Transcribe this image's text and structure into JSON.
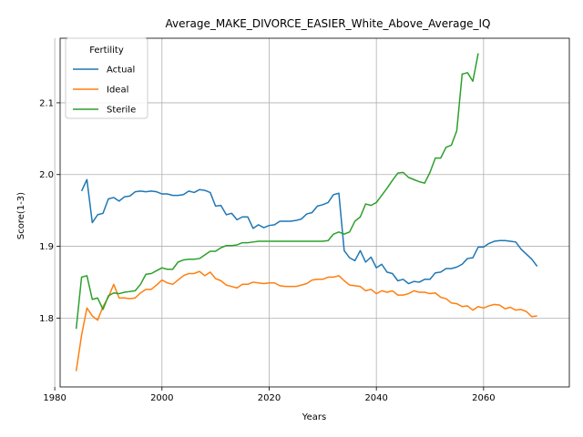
{
  "chart_data": {
    "type": "line",
    "title": "Average_MAKE_DIVORCE_EASIER_White_Above_Average_IQ",
    "xlabel": "Years",
    "ylabel": "Score(1-3)",
    "xlim": [
      1981,
      2076
    ],
    "ylim": [
      1.704,
      2.19
    ],
    "xticks": [
      1980,
      2000,
      2020,
      2040,
      2060
    ],
    "yticks": [
      1.8,
      1.9,
      2.0,
      2.1
    ],
    "ytick_labels": [
      "1.8",
      "1.9",
      "2.0",
      "2.1"
    ],
    "grid": true,
    "legend": {
      "title": "Fertility",
      "placement": "upper-left"
    },
    "series": [
      {
        "name": "Actual",
        "color": "#1f77b4",
        "x": [
          1985,
          1986,
          1987,
          1988,
          1989,
          1990,
          1991,
          1992,
          1993,
          1994,
          1995,
          1996,
          1997,
          1998,
          1999,
          2000,
          2001,
          2002,
          2003,
          2004,
          2005,
          2006,
          2007,
          2008,
          2009,
          2010,
          2011,
          2012,
          2013,
          2014,
          2015,
          2016,
          2017,
          2018,
          2019,
          2020,
          2021,
          2022,
          2023,
          2024,
          2025,
          2026,
          2027,
          2028,
          2029,
          2030,
          2031,
          2032,
          2033,
          2034,
          2035,
          2036,
          2037,
          2038,
          2039,
          2040,
          2041,
          2042,
          2043,
          2044,
          2045,
          2046,
          2047,
          2048,
          2049,
          2050,
          2051,
          2052,
          2053,
          2054,
          2055,
          2056,
          2057,
          2058,
          2059,
          2060,
          2061,
          2062,
          2063,
          2064,
          2065,
          2066,
          2067,
          2068,
          2069,
          2070
        ],
        "y": [
          1.977,
          1.993,
          1.933,
          1.944,
          1.946,
          1.966,
          1.968,
          1.963,
          1.969,
          1.97,
          1.976,
          1.977,
          1.976,
          1.977,
          1.976,
          1.973,
          1.973,
          1.971,
          1.971,
          1.972,
          1.977,
          1.975,
          1.979,
          1.978,
          1.975,
          1.956,
          1.957,
          1.944,
          1.946,
          1.937,
          1.941,
          1.941,
          1.925,
          1.93,
          1.926,
          1.929,
          1.93,
          1.935,
          1.935,
          1.935,
          1.936,
          1.938,
          1.945,
          1.947,
          1.956,
          1.958,
          1.961,
          1.972,
          1.974,
          1.894,
          1.884,
          1.88,
          1.894,
          1.878,
          1.885,
          1.87,
          1.875,
          1.864,
          1.862,
          1.852,
          1.854,
          1.848,
          1.851,
          1.85,
          1.854,
          1.854,
          1.863,
          1.864,
          1.869,
          1.869,
          1.871,
          1.875,
          1.883,
          1.884,
          1.899,
          1.899,
          1.904,
          1.907,
          1.908,
          1.908,
          1.907,
          1.906,
          1.896,
          1.889,
          1.882,
          1.872
        ]
      },
      {
        "name": "Ideal",
        "color": "#ff7f0e",
        "x": [
          1984,
          1985,
          1986,
          1987,
          1988,
          1989,
          1990,
          1991,
          1992,
          1993,
          1994,
          1995,
          1996,
          1997,
          1998,
          1999,
          2000,
          2001,
          2002,
          2003,
          2004,
          2005,
          2006,
          2007,
          2008,
          2009,
          2010,
          2011,
          2012,
          2013,
          2014,
          2015,
          2016,
          2017,
          2018,
          2019,
          2020,
          2021,
          2022,
          2023,
          2024,
          2025,
          2026,
          2027,
          2028,
          2029,
          2030,
          2031,
          2032,
          2033,
          2034,
          2035,
          2036,
          2037,
          2038,
          2039,
          2040,
          2041,
          2042,
          2043,
          2044,
          2045,
          2046,
          2047,
          2048,
          2049,
          2050,
          2051,
          2052,
          2053,
          2054,
          2055,
          2056,
          2057,
          2058,
          2059,
          2060,
          2061,
          2062,
          2063,
          2064,
          2065,
          2066,
          2067,
          2068,
          2069,
          2070
        ],
        "y": [
          1.726,
          1.776,
          1.814,
          1.803,
          1.797,
          1.816,
          1.829,
          1.847,
          1.828,
          1.828,
          1.827,
          1.828,
          1.835,
          1.84,
          1.84,
          1.846,
          1.853,
          1.849,
          1.847,
          1.853,
          1.859,
          1.862,
          1.862,
          1.865,
          1.859,
          1.864,
          1.855,
          1.852,
          1.846,
          1.844,
          1.842,
          1.847,
          1.847,
          1.85,
          1.849,
          1.848,
          1.849,
          1.849,
          1.845,
          1.844,
          1.844,
          1.844,
          1.846,
          1.848,
          1.853,
          1.854,
          1.854,
          1.857,
          1.857,
          1.859,
          1.852,
          1.846,
          1.845,
          1.844,
          1.838,
          1.84,
          1.834,
          1.838,
          1.836,
          1.838,
          1.832,
          1.832,
          1.834,
          1.838,
          1.836,
          1.836,
          1.834,
          1.835,
          1.829,
          1.827,
          1.821,
          1.82,
          1.816,
          1.817,
          1.811,
          1.816,
          1.814,
          1.817,
          1.819,
          1.818,
          1.813,
          1.815,
          1.811,
          1.812,
          1.809,
          1.802,
          1.803
        ]
      },
      {
        "name": "Sterile",
        "color": "#2ca02c",
        "x": [
          1984,
          1985,
          1986,
          1987,
          1988,
          1989,
          1990,
          1991,
          1992,
          1993,
          1994,
          1995,
          1996,
          1997,
          1998,
          1999,
          2000,
          2001,
          2002,
          2003,
          2004,
          2005,
          2006,
          2007,
          2008,
          2009,
          2010,
          2011,
          2012,
          2013,
          2014,
          2015,
          2016,
          2017,
          2018,
          2019,
          2020,
          2021,
          2022,
          2023,
          2024,
          2025,
          2026,
          2027,
          2028,
          2029,
          2030,
          2031,
          2032,
          2033,
          2034,
          2035,
          2036,
          2037,
          2038,
          2039,
          2040,
          2041,
          2042,
          2043,
          2044,
          2045,
          2046,
          2047,
          2048,
          2049,
          2050,
          2051,
          2052,
          2053,
          2054,
          2055,
          2056,
          2057,
          2058,
          2059
        ],
        "y": [
          1.785,
          1.857,
          1.859,
          1.826,
          1.828,
          1.812,
          1.831,
          1.835,
          1.834,
          1.836,
          1.837,
          1.838,
          1.847,
          1.861,
          1.862,
          1.866,
          1.87,
          1.868,
          1.868,
          1.878,
          1.881,
          1.882,
          1.882,
          1.883,
          1.888,
          1.893,
          1.893,
          1.898,
          1.901,
          1.901,
          1.902,
          1.905,
          1.905,
          1.906,
          1.907,
          1.907,
          1.907,
          1.907,
          1.907,
          1.907,
          1.907,
          1.907,
          1.907,
          1.907,
          1.907,
          1.907,
          1.907,
          1.908,
          1.917,
          1.92,
          1.917,
          1.92,
          1.935,
          1.941,
          1.959,
          1.957,
          1.961,
          1.971,
          1.981,
          1.992,
          2.002,
          2.003,
          1.996,
          1.993,
          1.99,
          1.988,
          2.003,
          2.023,
          2.023,
          2.038,
          2.041,
          2.061,
          2.14,
          2.142,
          2.13,
          2.169
        ]
      }
    ]
  }
}
